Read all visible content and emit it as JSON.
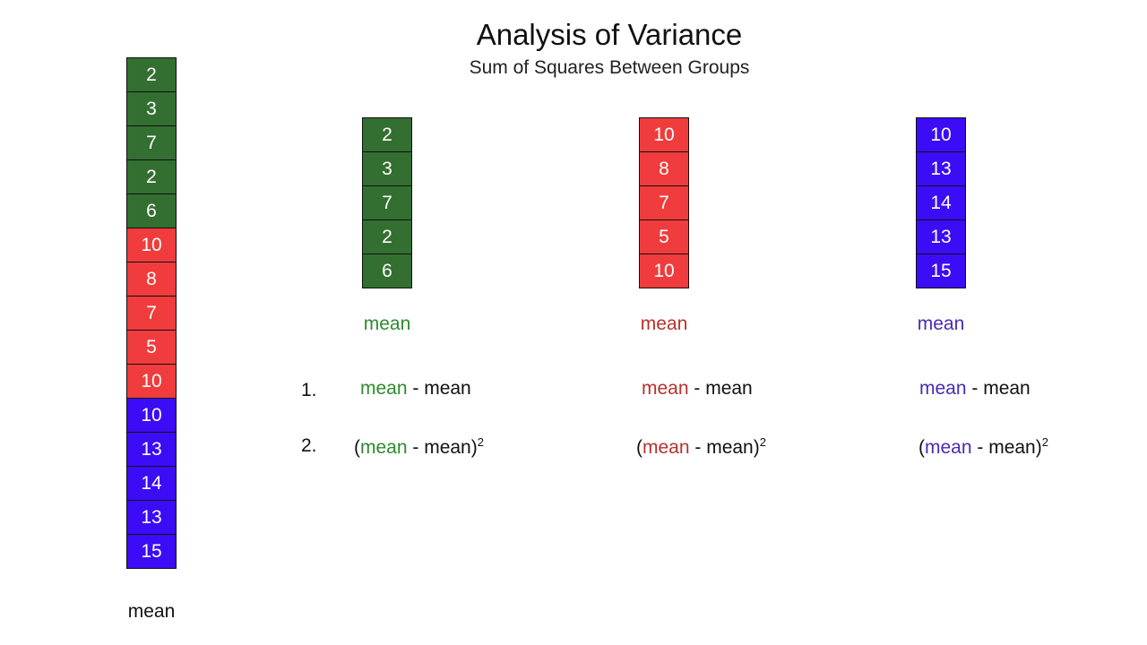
{
  "title": "Analysis of Variance",
  "subtitle": "Sum of Squares Between Groups",
  "colors": {
    "green": "#336f30",
    "red": "#f03c3c",
    "blue": "#3b0cf5",
    "green_text": "#2e8a2e",
    "red_text": "#b8302e",
    "blue_text": "#4a2ab5"
  },
  "combined": {
    "values": [
      2,
      3,
      7,
      2,
      6,
      10,
      8,
      7,
      5,
      10,
      10,
      13,
      14,
      13,
      15
    ],
    "groups": [
      "green",
      "green",
      "green",
      "green",
      "green",
      "red",
      "red",
      "red",
      "red",
      "red",
      "blue",
      "blue",
      "blue",
      "blue",
      "blue"
    ],
    "label": "mean"
  },
  "groups": [
    {
      "color": "green",
      "values": [
        2,
        3,
        7,
        2,
        6
      ],
      "mean_label": "mean"
    },
    {
      "color": "red",
      "values": [
        10,
        8,
        7,
        5,
        10
      ],
      "mean_label": "mean"
    },
    {
      "color": "blue",
      "values": [
        10,
        13,
        14,
        13,
        15
      ],
      "mean_label": "mean"
    }
  ],
  "steps": {
    "n1": "1.",
    "n2": "2.",
    "group_mean": "mean",
    "minus": " - ",
    "grand_mean": "mean",
    "open": "(",
    "close": ")",
    "exp": "2"
  }
}
